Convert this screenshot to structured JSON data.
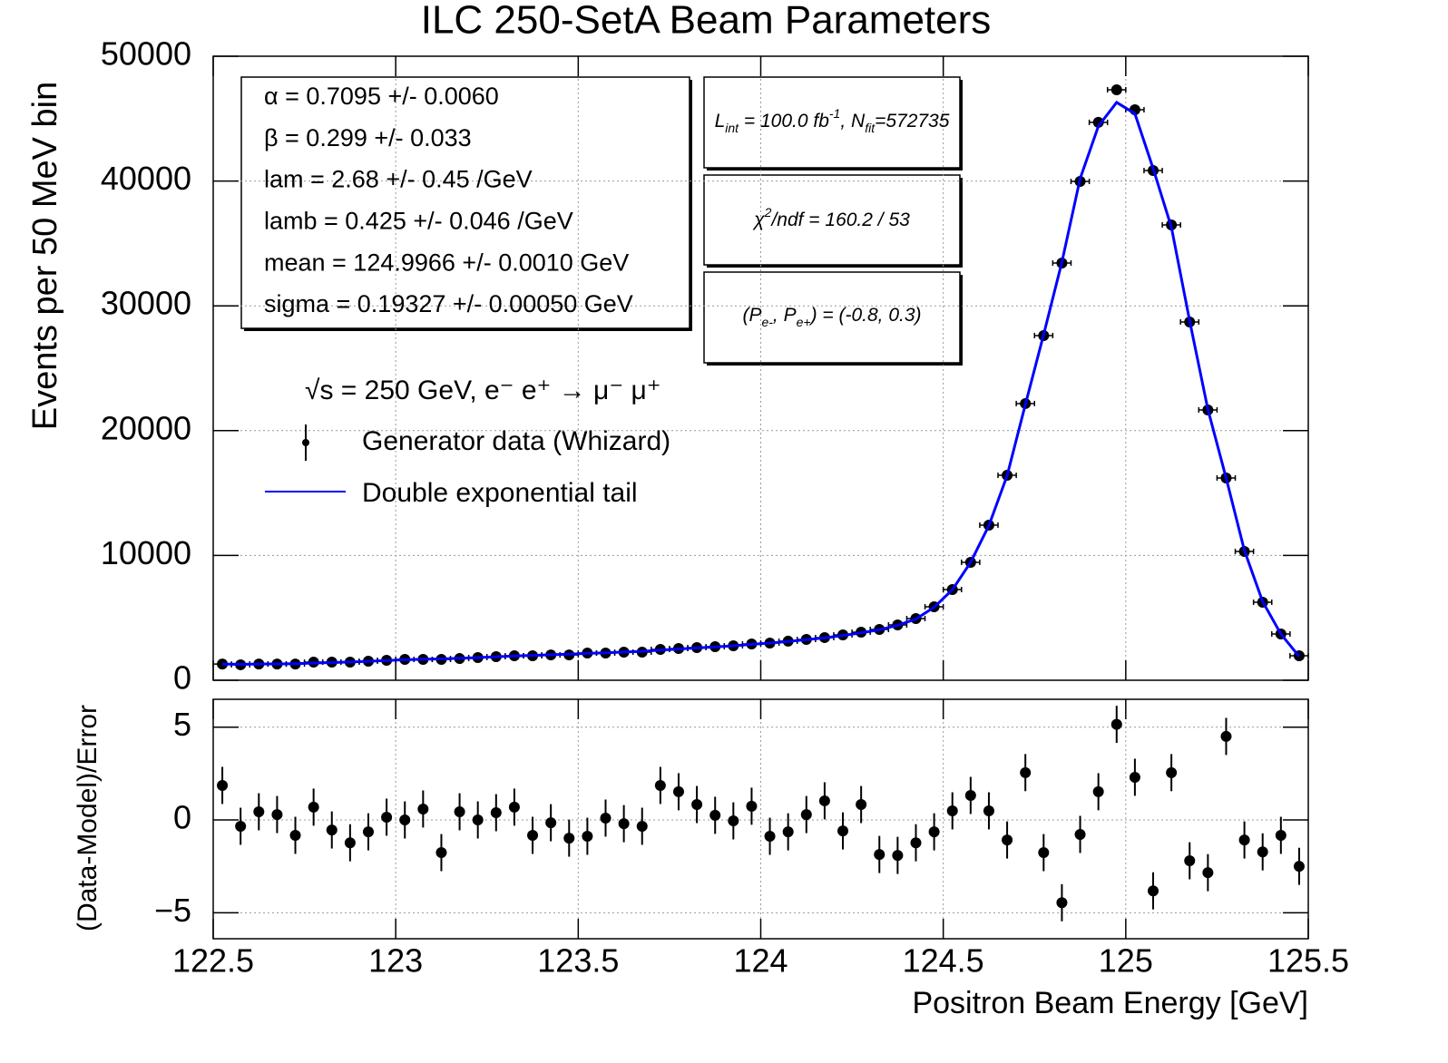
{
  "chart_data": [
    {
      "type": "scatter",
      "title": "ILC 250-SetA Beam Parameters",
      "ylabel": "Events per 50 MeV bin",
      "xlim": [
        122.5,
        125.5
      ],
      "xticks": [
        122.5,
        123,
        123.5,
        124,
        124.5,
        125,
        125.5
      ],
      "ylim": [
        0,
        50000
      ],
      "yticks": [
        0,
        10000,
        20000,
        30000,
        40000,
        50000
      ],
      "grid": true,
      "x": [
        122.525,
        122.575,
        122.625,
        122.675,
        122.725,
        122.775,
        122.825,
        122.875,
        122.925,
        122.975,
        123.025,
        123.075,
        123.125,
        123.175,
        123.225,
        123.275,
        123.325,
        123.375,
        123.425,
        123.475,
        123.525,
        123.575,
        123.625,
        123.675,
        123.725,
        123.775,
        123.825,
        123.875,
        123.925,
        123.975,
        124.025,
        124.075,
        124.125,
        124.175,
        124.225,
        124.275,
        124.325,
        124.375,
        124.425,
        124.475,
        124.525,
        124.575,
        124.625,
        124.675,
        124.725,
        124.775,
        124.825,
        124.875,
        124.925,
        124.975,
        125.025,
        125.075,
        125.125,
        125.175,
        125.225,
        125.275,
        125.325,
        125.375,
        125.425,
        125.475
      ],
      "xerr": 0.025,
      "series": [
        {
          "name": "Generator data (Whizard)",
          "color": "#000000",
          "values": [
            1300,
            1240,
            1300,
            1300,
            1300,
            1450,
            1450,
            1450,
            1530,
            1600,
            1670,
            1670,
            1670,
            1740,
            1820,
            1890,
            1960,
            1960,
            2030,
            2030,
            2180,
            2180,
            2250,
            2250,
            2470,
            2540,
            2620,
            2690,
            2760,
            2910,
            2980,
            3130,
            3270,
            3420,
            3630,
            3850,
            4070,
            4430,
            4940,
            5890,
            7270,
            9450,
            12430,
            16420,
            22170,
            27620,
            33430,
            39970,
            44700,
            47310,
            45710,
            40840,
            36480,
            28710,
            21660,
            16210,
            10320,
            6250,
            3710,
            1960
          ]
        },
        {
          "name": "Double exponential tail",
          "color": "#0000ff",
          "line": true,
          "values": [
            1300,
            1280,
            1300,
            1310,
            1330,
            1380,
            1420,
            1460,
            1520,
            1580,
            1640,
            1680,
            1710,
            1760,
            1820,
            1880,
            1940,
            1990,
            2040,
            2090,
            2150,
            2200,
            2260,
            2320,
            2420,
            2500,
            2590,
            2670,
            2760,
            2880,
            2980,
            3110,
            3250,
            3400,
            3590,
            3800,
            4050,
            4400,
            4900,
            5850,
            7250,
            9450,
            12400,
            16400,
            22100,
            27700,
            33500,
            40200,
            44400,
            46300,
            45400,
            41000,
            36300,
            28800,
            21700,
            16200,
            10400,
            6300,
            3700,
            1900
          ]
        }
      ],
      "fit_parameters": [
        "α =  0.7095 +/- 0.0060",
        "β =  0.299 +/- 0.033",
        "lam =  2.68 +/- 0.45 /GeV",
        "lamb =  0.425 +/- 0.046 /GeV",
        "mean =  124.9966 +/- 0.0010 GeV",
        "sigma =  0.19327 +/- 0.00050 GeV"
      ],
      "annotations": [
        [
          "L",
          "int",
          " = 100.0 fb",
          "-1",
          ", N",
          "fit",
          "=572735"
        ],
        [
          "χ",
          "2",
          "/ndf =  160.2 /  53"
        ],
        [
          "(P",
          "e-",
          ", P",
          "e+",
          ") = (-0.8, 0.3)"
        ]
      ],
      "legend_title": "√s = 250 GeV, e⁻ e⁺ → μ⁻ μ⁺"
    },
    {
      "type": "scatter",
      "ylabel": "(Data-Model)/Error",
      "xlabel": "Positron Beam Energy [GeV]",
      "xlim": [
        122.5,
        125.5
      ],
      "xticks": [
        122.5,
        123,
        123.5,
        124,
        124.5,
        125,
        125.5
      ],
      "ylim": [
        -6.4,
        6.5
      ],
      "yticks": [
        {
          "value": -5,
          "label": "−5"
        },
        0,
        5
      ],
      "grid": true,
      "x": [
        122.525,
        122.575,
        122.625,
        122.675,
        122.725,
        122.775,
        122.825,
        122.875,
        122.925,
        122.975,
        123.025,
        123.075,
        123.125,
        123.175,
        123.225,
        123.275,
        123.325,
        123.375,
        123.425,
        123.475,
        123.525,
        123.575,
        123.625,
        123.675,
        123.725,
        123.775,
        123.825,
        123.875,
        123.925,
        123.975,
        124.025,
        124.075,
        124.125,
        124.175,
        124.225,
        124.275,
        124.325,
        124.375,
        124.425,
        124.475,
        124.525,
        124.575,
        124.625,
        124.675,
        124.725,
        124.775,
        124.825,
        124.875,
        124.925,
        124.975,
        125.025,
        125.075,
        125.125,
        125.175,
        125.225,
        125.275,
        125.325,
        125.375,
        125.425,
        125.475
      ],
      "yerr": 1,
      "color": "#000000",
      "values": [
        1.86,
        -0.34,
        0.44,
        0.29,
        -0.83,
        0.69,
        -0.54,
        -1.23,
        -0.64,
        0.15,
        0,
        0.59,
        -1.76,
        0.44,
        0,
        0.39,
        0.69,
        -0.83,
        -0.15,
        -0.98,
        -0.88,
        0.1,
        -0.2,
        -0.34,
        1.86,
        1.52,
        0.83,
        0.25,
        -0.05,
        0.74,
        -0.88,
        -0.64,
        0.29,
        1.03,
        -0.59,
        0.83,
        -1.86,
        -1.91,
        -1.23,
        -0.64,
        0.49,
        1.32,
        0.49,
        -1.08,
        2.55,
        -1.76,
        -4.46,
        -0.78,
        1.52,
        5.15,
        2.3,
        -3.82,
        2.55,
        -2.2,
        -2.84,
        4.5,
        -1.08,
        -1.72,
        -0.83,
        -2.5
      ]
    }
  ]
}
